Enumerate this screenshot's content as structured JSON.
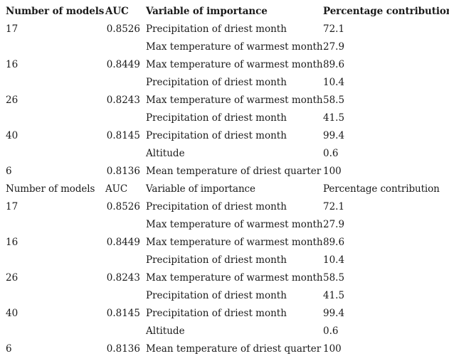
{
  "tables": [
    {
      "headers": {
        "models": "Number of models",
        "auc": "AUC",
        "variable": "Variable of importance",
        "percentage": "Percentage contribution"
      },
      "rows": [
        {
          "models": "17",
          "auc": "0.8526",
          "variable": "Precipitation of driest month",
          "percentage": "72.1"
        },
        {
          "models": "",
          "auc": "",
          "variable": "Max temperature of warmest month",
          "percentage": "27.9"
        },
        {
          "models": "16",
          "auc": "0.8449",
          "variable": "Max temperature of warmest month",
          "percentage": "89.6"
        },
        {
          "models": "",
          "auc": "",
          "variable": "Precipitation of driest month",
          "percentage": "10.4"
        },
        {
          "models": "26",
          "auc": "0.8243",
          "variable": "Max temperature of warmest month",
          "percentage": "58.5"
        },
        {
          "models": "",
          "auc": "",
          "variable": "Precipitation of driest month",
          "percentage": "41.5"
        },
        {
          "models": "40",
          "auc": "0.8145",
          "variable": "Precipitation of driest month",
          "percentage": "99.4"
        },
        {
          "models": "",
          "auc": "",
          "variable": "Altitude",
          "percentage": "0.6"
        },
        {
          "models": "6",
          "auc": "0.8136",
          "variable": "Mean temperature of driest quarter",
          "percentage": "100"
        }
      ]
    },
    {
      "headers": {
        "models": "Number of models",
        "auc": "AUC",
        "variable": "Variable of importance",
        "percentage": "Percentage contribution"
      },
      "rows": [
        {
          "models": "17",
          "auc": "0.8526",
          "variable": "Precipitation of driest month",
          "percentage": "72.1"
        },
        {
          "models": "",
          "auc": "",
          "variable": "Max temperature of warmest month",
          "percentage": "27.9"
        },
        {
          "models": "16",
          "auc": "0.8449",
          "variable": "Max temperature of warmest month",
          "percentage": "89.6"
        },
        {
          "models": "",
          "auc": "",
          "variable": "Precipitation of driest month",
          "percentage": "10.4"
        },
        {
          "models": "26",
          "auc": "0.8243",
          "variable": "Max temperature of warmest month",
          "percentage": "58.5"
        },
        {
          "models": "",
          "auc": "",
          "variable": "Precipitation of driest month",
          "percentage": "41.5"
        },
        {
          "models": "40",
          "auc": "0.8145",
          "variable": "Precipitation of driest month",
          "percentage": "99.4"
        },
        {
          "models": "",
          "auc": "",
          "variable": "Altitude",
          "percentage": "0.6"
        },
        {
          "models": "6",
          "auc": "0.8136",
          "variable": "Mean temperature of driest quarter",
          "percentage": "100"
        }
      ]
    }
  ]
}
